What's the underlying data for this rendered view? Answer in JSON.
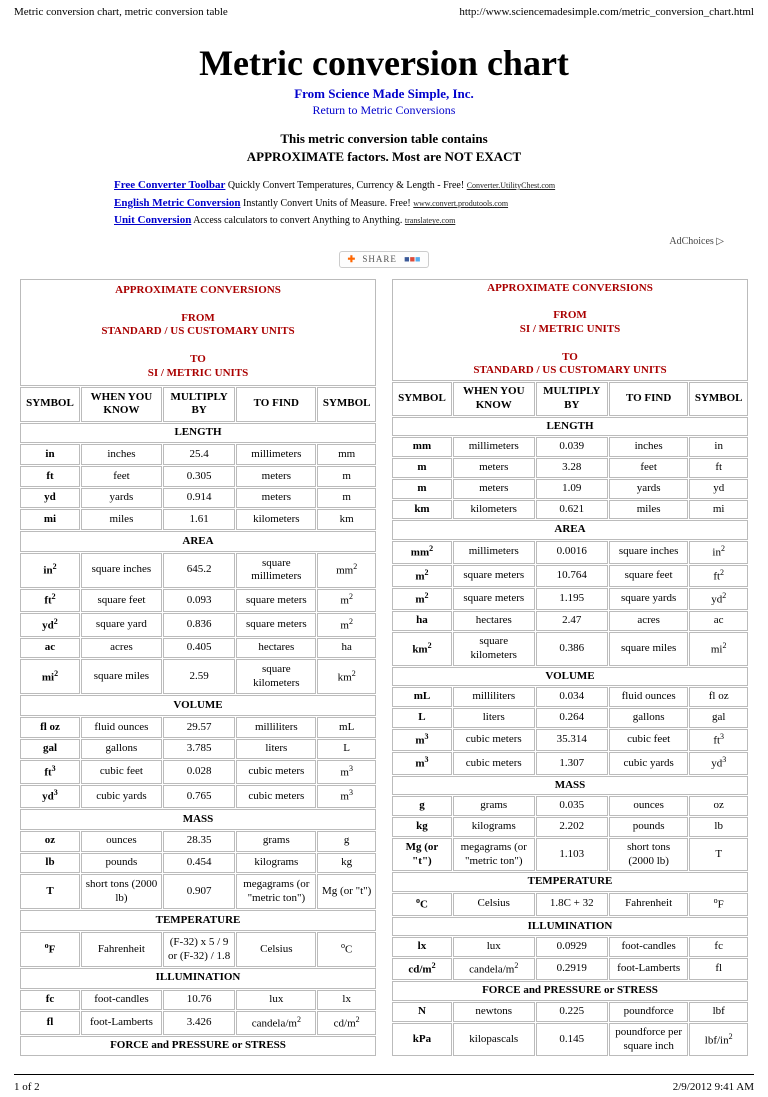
{
  "header": {
    "left": "Metric conversion chart, metric conversion table",
    "right": "http://www.sciencemadesimple.com/metric_conversion_chart.html"
  },
  "title": "Metric conversion chart",
  "subtitle": "From Science Made Simple, Inc.",
  "returnLink": "Return to Metric Conversions",
  "disclaimer": {
    "line1": "This metric conversion table contains",
    "line2": "APPROXIMATE factors. Most are NOT EXACT"
  },
  "ads": [
    {
      "title": "Free Converter Toolbar",
      "desc": "Quickly Convert Temperatures, Currency & Length - Free!",
      "domain": "Converter.UtilityChest.com"
    },
    {
      "title": "English Metric Conversion",
      "desc": "Instantly Convert Units of Measure. Free!",
      "domain": "www.convert.produtools.com"
    },
    {
      "title": "Unit Conversion",
      "desc": "Access calculators to convert Anything to Anything.",
      "domain": "translateye.com"
    }
  ],
  "adchoices": "AdChoices",
  "share": "SHARE",
  "tableLeft": {
    "mainHeader": "APPROXIMATE CONVERSIONS",
    "fromLabel": "FROM",
    "fromUnits": "STANDARD / US CUSTOMARY UNITS",
    "toLabel": "TO",
    "toUnits": "SI / METRIC UNITS"
  },
  "tableRight": {
    "mainHeader": "APPROXIMATE CONVERSIONS",
    "fromLabel": "FROM",
    "fromUnits": "SI / METRIC UNITS",
    "toLabel": "TO",
    "toUnits": "STANDARD / US CUSTOMARY UNITS"
  },
  "colHeads": {
    "symbol": "SYMBOL",
    "know": "WHEN YOU KNOW",
    "mult": "MULTIPLY BY",
    "find": "TO FIND",
    "symbol2": "SYMBOL"
  },
  "sections": {
    "length": "LENGTH",
    "area": "AREA",
    "volume": "VOLUME",
    "mass": "MASS",
    "temp": "TEMPERATURE",
    "illum": "ILLUMINATION",
    "force": "FORCE and PRESSURE or STRESS"
  },
  "left": {
    "length": [
      {
        "s": "in",
        "k": "inches",
        "m": "25.4",
        "f": "millimeters",
        "s2": "mm"
      },
      {
        "s": "ft",
        "k": "feet",
        "m": "0.305",
        "f": "meters",
        "s2": "m"
      },
      {
        "s": "yd",
        "k": "yards",
        "m": "0.914",
        "f": "meters",
        "s2": "m"
      },
      {
        "s": "mi",
        "k": "miles",
        "m": "1.61",
        "f": "kilometers",
        "s2": "km"
      }
    ],
    "area": [
      {
        "s": "in",
        "sup": "2",
        "k": "square inches",
        "m": "645.2",
        "f": "square millimeters",
        "s2": "mm",
        "s2sup": "2"
      },
      {
        "s": "ft",
        "sup": "2",
        "k": "square feet",
        "m": "0.093",
        "f": "square meters",
        "s2": "m",
        "s2sup": "2"
      },
      {
        "s": "yd",
        "sup": "2",
        "k": "square yard",
        "m": "0.836",
        "f": "square meters",
        "s2": "m",
        "s2sup": "2"
      },
      {
        "s": "ac",
        "k": "acres",
        "m": "0.405",
        "f": "hectares",
        "s2": "ha"
      },
      {
        "s": "mi",
        "sup": "2",
        "k": "square miles",
        "m": "2.59",
        "f": "square kilometers",
        "s2": "km",
        "s2sup": "2"
      }
    ],
    "volume": [
      {
        "s": "fl oz",
        "k": "fluid ounces",
        "m": "29.57",
        "f": "milliliters",
        "s2": "mL"
      },
      {
        "s": "gal",
        "k": "gallons",
        "m": "3.785",
        "f": "liters",
        "s2": "L"
      },
      {
        "s": "ft",
        "sup": "3",
        "k": "cubic feet",
        "m": "0.028",
        "f": "cubic meters",
        "s2": "m",
        "s2sup": "3"
      },
      {
        "s": "yd",
        "sup": "3",
        "k": "cubic yards",
        "m": "0.765",
        "f": "cubic meters",
        "s2": "m",
        "s2sup": "3"
      }
    ],
    "mass": [
      {
        "s": "oz",
        "k": "ounces",
        "m": "28.35",
        "f": "grams",
        "s2": "g"
      },
      {
        "s": "lb",
        "k": "pounds",
        "m": "0.454",
        "f": "kilograms",
        "s2": "kg"
      },
      {
        "s": "T",
        "k": "short tons (2000 lb)",
        "m": "0.907",
        "f": "megagrams (or \"metric ton\")",
        "s2": "Mg (or \"t\")"
      }
    ],
    "temp": [
      {
        "s": "°",
        "spre": "o",
        "sbase": "F",
        "k": "Fahrenheit",
        "m": "(F-32) x 5 / 9 or (F-32) / 1.8",
        "f": "Celsius",
        "s2pre": "o",
        "s2base": "C"
      }
    ],
    "illum": [
      {
        "s": "fc",
        "k": "foot-candles",
        "m": "10.76",
        "f": "lux",
        "s2": "lx"
      },
      {
        "s": "fl",
        "k": "foot-Lamberts",
        "m": "3.426",
        "f": "candela/m",
        "fsup": "2",
        "s2": "cd/m",
        "s2sup": "2"
      }
    ]
  },
  "right": {
    "length": [
      {
        "s": "mm",
        "k": "millimeters",
        "m": "0.039",
        "f": "inches",
        "s2": "in"
      },
      {
        "s": "m",
        "k": "meters",
        "m": "3.28",
        "f": "feet",
        "s2": "ft"
      },
      {
        "s": "m",
        "k": "meters",
        "m": "1.09",
        "f": "yards",
        "s2": "yd"
      },
      {
        "s": "km",
        "k": "kilometers",
        "m": "0.621",
        "f": "miles",
        "s2": "mi"
      }
    ],
    "area": [
      {
        "s": "mm",
        "sup": "2",
        "k": "millimeters",
        "m": "0.0016",
        "f": "square inches",
        "s2": "in",
        "s2sup": "2"
      },
      {
        "s": "m",
        "sup": "2",
        "k": "square meters",
        "m": "10.764",
        "f": "square feet",
        "s2": "ft",
        "s2sup": "2"
      },
      {
        "s": "m",
        "sup": "2",
        "k": "square meters",
        "m": "1.195",
        "f": "square yards",
        "s2": "yd",
        "s2sup": "2"
      },
      {
        "s": "ha",
        "k": "hectares",
        "m": "2.47",
        "f": "acres",
        "s2": "ac"
      },
      {
        "s": "km",
        "sup": "2",
        "k": "square kilometers",
        "m": "0.386",
        "f": "square miles",
        "s2": "mi",
        "s2sup": "2"
      }
    ],
    "volume": [
      {
        "s": "mL",
        "k": "milliliters",
        "m": "0.034",
        "f": "fluid ounces",
        "s2": "fl oz"
      },
      {
        "s": "L",
        "k": "liters",
        "m": "0.264",
        "f": "gallons",
        "s2": "gal"
      },
      {
        "s": "m",
        "sup": "3",
        "k": "cubic meters",
        "m": "35.314",
        "f": "cubic feet",
        "s2": "ft",
        "s2sup": "3"
      },
      {
        "s": "m",
        "sup": "3",
        "k": "cubic meters",
        "m": "1.307",
        "f": "cubic yards",
        "s2": "yd",
        "s2sup": "3"
      }
    ],
    "mass": [
      {
        "s": "g",
        "k": "grams",
        "m": "0.035",
        "f": "ounces",
        "s2": "oz"
      },
      {
        "s": "kg",
        "k": "kilograms",
        "m": "2.202",
        "f": "pounds",
        "s2": "lb"
      },
      {
        "s": "Mg (or \"t\")",
        "k": "megagrams (or \"metric ton\")",
        "m": "1.103",
        "f": "short tons (2000 lb)",
        "s2": "T"
      }
    ],
    "temp": [
      {
        "spre": "o",
        "sbase": "C",
        "k": "Celsius",
        "m": "1.8C + 32",
        "f": "Fahrenheit",
        "s2pre": "o",
        "s2base": "F"
      }
    ],
    "illum": [
      {
        "s": "lx",
        "k": "lux",
        "m": "0.0929",
        "f": "foot-candles",
        "s2": "fc"
      },
      {
        "s": "cd/m",
        "sup": "2",
        "k": "candela/m",
        "ksup": "2",
        "m": "0.2919",
        "f": "foot-Lamberts",
        "s2": "fl"
      }
    ],
    "force": [
      {
        "s": "N",
        "k": "newtons",
        "m": "0.225",
        "f": "poundforce",
        "s2": "lbf"
      },
      {
        "s": "kPa",
        "k": "kilopascals",
        "m": "0.145",
        "f": "poundforce per square inch",
        "s2": "lbf/in",
        "s2sup": "2"
      }
    ]
  },
  "footer": {
    "left": "1 of 2",
    "right": "2/9/2012 9:41 AM"
  }
}
